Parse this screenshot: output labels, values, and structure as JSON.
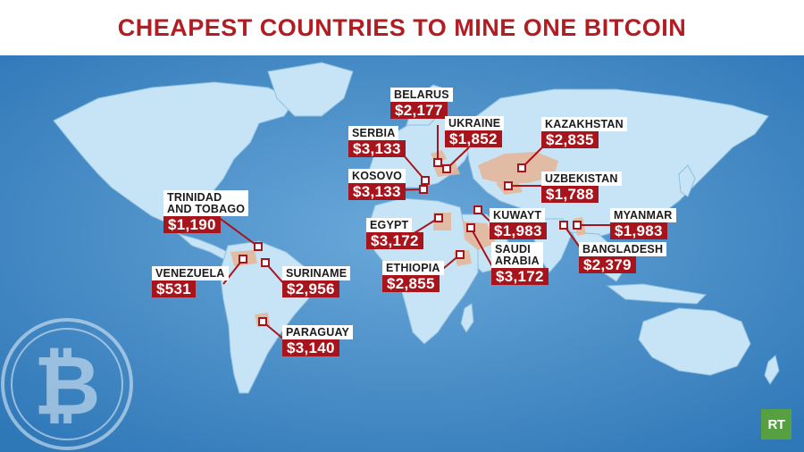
{
  "title": "CHEAPEST COUNTRIES TO MINE ONE BITCOIN",
  "logo_text": "RT",
  "colors": {
    "title": "#b01e23",
    "cost_background": "#a8141b",
    "ocean": "#3d86c4",
    "land": "#c6e4f5",
    "highlight": "#e5b79b",
    "logo": "#56a041"
  },
  "icons": [
    "bitcoin-icon",
    "rt-logo"
  ],
  "countries": [
    {
      "name": "BELARUS",
      "cost": "$2,177"
    },
    {
      "name": "UKRAINE",
      "cost": "$1,852"
    },
    {
      "name": "SERBIA",
      "cost": "$3,133"
    },
    {
      "name": "KAZAKHSTAN",
      "cost": "$2,835"
    },
    {
      "name": "KOSOVO",
      "cost": "$3,133"
    },
    {
      "name": "UZBEKISTAN",
      "cost": "$1,788"
    },
    {
      "name": "TRINIDAD\nAND TOBAGO",
      "cost": "$1,190"
    },
    {
      "name": "EGYPT",
      "cost": "$3,172"
    },
    {
      "name": "KUWAYT",
      "cost": "$1,983"
    },
    {
      "name": "MYANMAR",
      "cost": "$1,983"
    },
    {
      "name": "BANGLADESH",
      "cost": "$2,379"
    },
    {
      "name": "VENEZUELA",
      "cost": "$531"
    },
    {
      "name": "SURINAME",
      "cost": "$2,956"
    },
    {
      "name": "ETHIOPIA",
      "cost": "$2,855"
    },
    {
      "name": "SAUDI\nARABIA",
      "cost": "$3,172"
    },
    {
      "name": "PARAGUAY",
      "cost": "$3,140"
    }
  ]
}
